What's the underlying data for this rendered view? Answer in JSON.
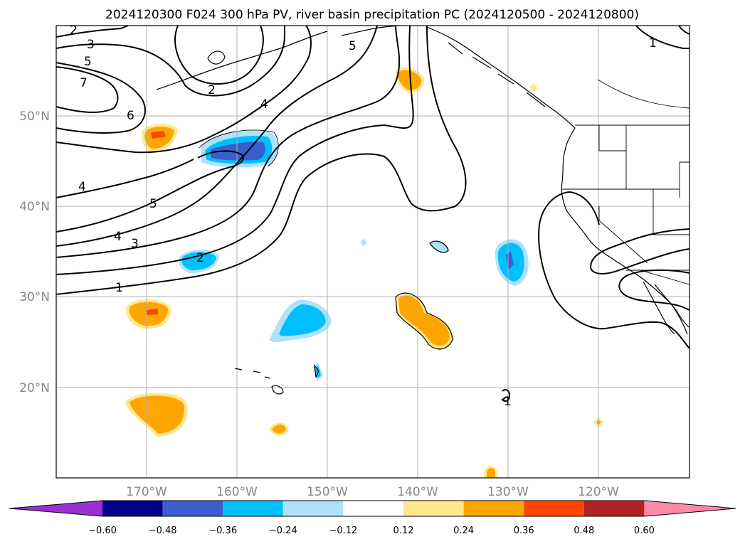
{
  "title": "2024120300 F024 300 hPa PV, river basin precipitation PC (2024120500 - 2024120800)",
  "lat_labels": [
    "50°N",
    "40°N",
    "30°N",
    "20°N"
  ],
  "lon_labels": [
    "170°W",
    "160°W",
    "150°W",
    "140°W",
    "130°W",
    "120°W"
  ],
  "colorbar": {
    "tick_labels": [
      "−0.60",
      "−0.48",
      "−0.36",
      "−0.24",
      "−0.12",
      "0.12",
      "0.24",
      "0.36",
      "0.48",
      "0.60"
    ],
    "colors": [
      "#9b30d0",
      "#00008b",
      "#3a5fcd",
      "#00bfff",
      "#aee2fa",
      "#ffffff",
      "#ffe88c",
      "#ffa500",
      "#ff4500",
      "#b22222",
      "#ff88aa"
    ]
  },
  "contour_labels": [
    "2",
    "3",
    "5",
    "7",
    "2",
    "6",
    "4",
    "4",
    "5",
    "4",
    "3",
    "2",
    "1",
    "5",
    "1",
    "1"
  ],
  "shading_colors": {
    "light_blue": "#aee2fa",
    "blue": "#00bfff",
    "mid_blue": "#3a5fcd",
    "yellow": "#ffe88c",
    "orange": "#ffa500",
    "red_orange": "#ff4500"
  }
}
